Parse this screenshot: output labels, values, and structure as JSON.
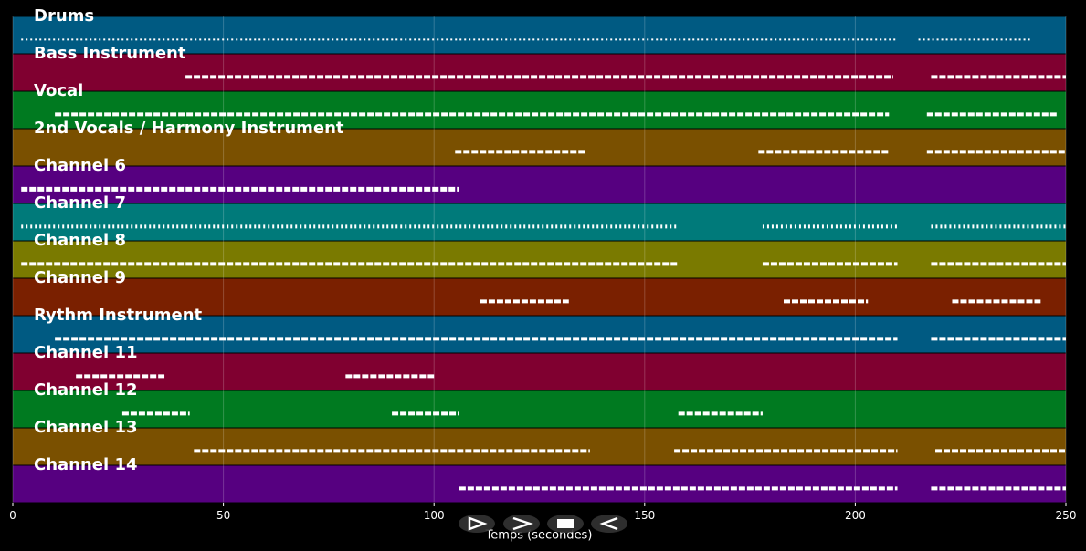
{
  "chart_data": {
    "type": "pianoroll",
    "x_label": "Temps (secondes)",
    "xlim": [
      0,
      250
    ],
    "xticks": [
      0,
      50,
      100,
      150,
      200,
      250
    ],
    "grid": true,
    "series": [
      {
        "name": "Drums",
        "color": "#005a82",
        "spans": [
          [
            2,
            210
          ],
          [
            215,
            242
          ]
        ]
      },
      {
        "name": "Bass Instrument",
        "color": "#800030",
        "spans": [
          [
            41,
            209
          ],
          [
            218,
            250
          ]
        ]
      },
      {
        "name": "Vocal",
        "color": "#007a20",
        "spans": [
          [
            10,
            208
          ],
          [
            217,
            248
          ]
        ]
      },
      {
        "name": "2nd Vocals / Harmony Instrument",
        "color": "#7a5000",
        "spans": [
          [
            105,
            136
          ],
          [
            177,
            208
          ],
          [
            217,
            250
          ]
        ]
      },
      {
        "name": "Channel 6",
        "color": "#560080",
        "spans": [
          [
            2,
            106
          ]
        ]
      },
      {
        "name": "Channel 7",
        "color": "#007a7a",
        "spans": [
          [
            2,
            158
          ],
          [
            178,
            210
          ],
          [
            218,
            250
          ]
        ]
      },
      {
        "name": "Channel 8",
        "color": "#7a7a00",
        "spans": [
          [
            2,
            158
          ],
          [
            178,
            210
          ],
          [
            218,
            250
          ]
        ]
      },
      {
        "name": "Channel 9",
        "color": "#7a2000",
        "spans": [
          [
            111,
            132
          ],
          [
            183,
            203
          ],
          [
            223,
            244
          ]
        ]
      },
      {
        "name": "Rythm Instrument",
        "color": "#005a82",
        "spans": [
          [
            10,
            210
          ],
          [
            218,
            250
          ]
        ]
      },
      {
        "name": "Channel 11",
        "color": "#800030",
        "spans": [
          [
            15,
            36
          ],
          [
            79,
            100
          ]
        ]
      },
      {
        "name": "Channel 12",
        "color": "#007a20",
        "spans": [
          [
            26,
            42
          ],
          [
            90,
            106
          ],
          [
            158,
            178
          ]
        ]
      },
      {
        "name": "Channel 13",
        "color": "#7a5000",
        "spans": [
          [
            43,
            137
          ],
          [
            157,
            210
          ],
          [
            219,
            250
          ]
        ]
      },
      {
        "name": "Channel 14",
        "color": "#560080",
        "spans": [
          [
            106,
            210
          ],
          [
            218,
            250
          ]
        ]
      }
    ]
  }
}
